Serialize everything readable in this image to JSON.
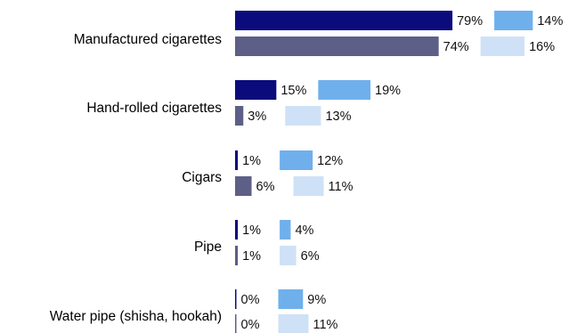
{
  "chart_data": {
    "type": "bar",
    "orientation": "horizontal",
    "stacked_segments": true,
    "categories": [
      "Manufactured cigarettes",
      "Hand-rolled cigarettes",
      "Cigars",
      "Pipe",
      "Water pipe (shisha, hookah)"
    ],
    "rows": [
      {
        "segments": [
          {
            "value": 79,
            "label": "79%",
            "color": "#0b0b7c"
          },
          {
            "value": 14,
            "label": "14%",
            "color": "#6fb0ec"
          }
        ]
      },
      {
        "segments": [
          {
            "value": 74,
            "label": "74%",
            "color": "#5d5f87"
          },
          {
            "value": 16,
            "label": "16%",
            "color": "#cfe1f6"
          }
        ]
      },
      {
        "segments": [
          {
            "value": 15,
            "label": "15%",
            "color": "#0b0b7c"
          },
          {
            "value": 19,
            "label": "19%",
            "color": "#6fb0ec"
          }
        ]
      },
      {
        "segments": [
          {
            "value": 3,
            "label": "3%",
            "color": "#5d5f87"
          },
          {
            "value": 13,
            "label": "13%",
            "color": "#cfe1f6"
          }
        ]
      },
      {
        "segments": [
          {
            "value": 1,
            "label": "1%",
            "color": "#0b0b7c"
          },
          {
            "value": 12,
            "label": "12%",
            "color": "#6fb0ec"
          }
        ]
      },
      {
        "segments": [
          {
            "value": 6,
            "label": "6%",
            "color": "#5d5f87"
          },
          {
            "value": 11,
            "label": "11%",
            "color": "#cfe1f6"
          }
        ]
      },
      {
        "segments": [
          {
            "value": 1,
            "label": "1%",
            "color": "#0b0b7c"
          },
          {
            "value": 4,
            "label": "4%",
            "color": "#6fb0ec"
          }
        ]
      },
      {
        "segments": [
          {
            "value": 1,
            "label": "1%",
            "color": "#5d5f87"
          },
          {
            "value": 6,
            "label": "6%",
            "color": "#cfe1f6"
          }
        ]
      },
      {
        "segments": [
          {
            "value": 0,
            "label": "0%",
            "color": "#0b0b7c"
          },
          {
            "value": 9,
            "label": "9%",
            "color": "#6fb0ec"
          }
        ]
      },
      {
        "segments": [
          {
            "value": 0,
            "label": "0%",
            "color": "#5d5f87"
          },
          {
            "value": 11,
            "label": "11%",
            "color": "#cfe1f6"
          }
        ]
      }
    ],
    "xlim": [
      0,
      100
    ],
    "grid": false,
    "legend": "none"
  }
}
